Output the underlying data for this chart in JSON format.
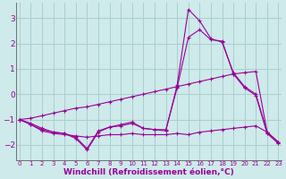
{
  "bg_color": "#ceeaea",
  "grid_color": "#aacece",
  "line_color": "#990099",
  "marker": "+",
  "xlabel": "Windchill (Refroidissement éolien,°C)",
  "xlabel_fontsize": 6.5,
  "yticks": [
    -2,
    -1,
    0,
    1,
    2,
    3
  ],
  "xticks": [
    0,
    1,
    2,
    3,
    4,
    5,
    6,
    7,
    8,
    9,
    10,
    11,
    12,
    13,
    14,
    15,
    16,
    17,
    18,
    19,
    20,
    21,
    22,
    23
  ],
  "xlim": [
    -0.3,
    23.3
  ],
  "ylim": [
    -2.6,
    3.6
  ],
  "series1": {
    "points": [
      [
        0,
        -1.0
      ],
      [
        1,
        -1.15
      ],
      [
        2,
        -1.35
      ],
      [
        3,
        -1.5
      ],
      [
        4,
        -1.55
      ],
      [
        5,
        -1.7
      ],
      [
        6,
        -2.15
      ],
      [
        7,
        -1.45
      ],
      [
        8,
        -1.3
      ],
      [
        9,
        -1.2
      ],
      [
        10,
        -1.1
      ],
      [
        11,
        -1.35
      ],
      [
        12,
        -1.4
      ],
      [
        13,
        -1.45
      ],
      [
        14,
        0.35
      ],
      [
        15,
        3.35
      ],
      [
        16,
        2.9
      ],
      [
        17,
        2.2
      ],
      [
        18,
        2.05
      ],
      [
        19,
        0.85
      ],
      [
        20,
        0.3
      ],
      [
        21,
        0.0
      ],
      [
        22,
        -1.5
      ],
      [
        23,
        -1.9
      ]
    ]
  },
  "series2": {
    "points": [
      [
        0,
        -1.0
      ],
      [
        1,
        -1.2
      ],
      [
        2,
        -1.4
      ],
      [
        3,
        -1.5
      ],
      [
        4,
        -1.55
      ],
      [
        5,
        -1.75
      ],
      [
        6,
        -2.2
      ],
      [
        7,
        -1.5
      ],
      [
        8,
        -1.3
      ],
      [
        9,
        -1.25
      ],
      [
        10,
        -1.15
      ],
      [
        11,
        -1.35
      ],
      [
        12,
        -1.4
      ],
      [
        13,
        -1.4
      ],
      [
        14,
        0.25
      ],
      [
        15,
        2.25
      ],
      [
        16,
        2.55
      ],
      [
        17,
        2.15
      ],
      [
        18,
        2.1
      ],
      [
        19,
        0.8
      ],
      [
        20,
        0.25
      ],
      [
        21,
        -0.05
      ],
      [
        22,
        -1.55
      ],
      [
        23,
        -1.95
      ]
    ]
  },
  "series3": {
    "points": [
      [
        0,
        -1.0
      ],
      [
        1,
        -0.95
      ],
      [
        2,
        -0.85
      ],
      [
        3,
        -0.75
      ],
      [
        4,
        -0.65
      ],
      [
        5,
        -0.55
      ],
      [
        6,
        -0.5
      ],
      [
        7,
        -0.4
      ],
      [
        8,
        -0.3
      ],
      [
        9,
        -0.2
      ],
      [
        10,
        -0.1
      ],
      [
        11,
        0.0
      ],
      [
        12,
        0.1
      ],
      [
        13,
        0.2
      ],
      [
        14,
        0.3
      ],
      [
        15,
        0.4
      ],
      [
        16,
        0.5
      ],
      [
        17,
        0.6
      ],
      [
        18,
        0.7
      ],
      [
        19,
        0.8
      ],
      [
        20,
        0.85
      ],
      [
        21,
        0.9
      ],
      [
        22,
        -1.5
      ],
      [
        23,
        -1.9
      ]
    ]
  },
  "series4": {
    "points": [
      [
        0,
        -1.0
      ],
      [
        1,
        -1.2
      ],
      [
        2,
        -1.45
      ],
      [
        3,
        -1.55
      ],
      [
        4,
        -1.6
      ],
      [
        5,
        -1.65
      ],
      [
        6,
        -1.7
      ],
      [
        7,
        -1.65
      ],
      [
        8,
        -1.6
      ],
      [
        9,
        -1.6
      ],
      [
        10,
        -1.55
      ],
      [
        11,
        -1.6
      ],
      [
        12,
        -1.6
      ],
      [
        13,
        -1.6
      ],
      [
        14,
        -1.55
      ],
      [
        15,
        -1.6
      ],
      [
        16,
        -1.5
      ],
      [
        17,
        -1.45
      ],
      [
        18,
        -1.4
      ],
      [
        19,
        -1.35
      ],
      [
        20,
        -1.3
      ],
      [
        21,
        -1.25
      ],
      [
        22,
        -1.5
      ],
      [
        23,
        -1.9
      ]
    ]
  }
}
